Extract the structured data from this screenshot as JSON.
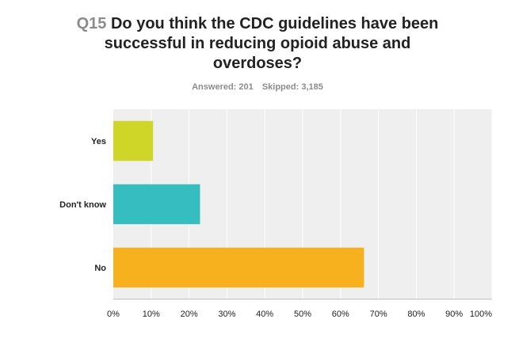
{
  "header": {
    "question_number": "Q15",
    "question_text": "Do you think the CDC guidelines have been successful in reducing opioid abuse and overdoses?",
    "answered": "Answered: 201",
    "skipped": "Skipped: 3,185"
  },
  "chart_data": {
    "type": "bar",
    "orientation": "horizontal",
    "categories": [
      "Yes",
      "Don't know",
      "No"
    ],
    "values": [
      10.5,
      22.9,
      66.2
    ],
    "xlim": [
      0,
      100
    ],
    "xticks": [
      "0%",
      "10%",
      "20%",
      "30%",
      "40%",
      "50%",
      "60%",
      "70%",
      "80%",
      "90%",
      "100%"
    ],
    "grid": true,
    "colors": [
      "#cfd628",
      "#35bdbf",
      "#f7b01e"
    ],
    "background": "#efefef"
  }
}
